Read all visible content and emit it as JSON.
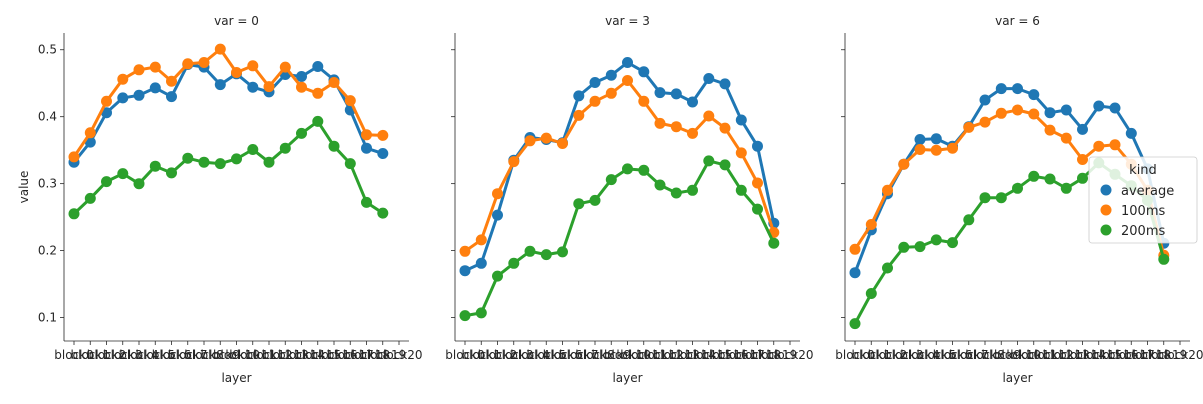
{
  "chart_data": {
    "type": "line",
    "ylabel": "value",
    "xlabel": "layer",
    "ylim": [
      0.065,
      0.525
    ],
    "yticks": [
      0.1,
      0.2,
      0.3,
      0.4,
      0.5
    ],
    "ytick_labels": [
      "0.1",
      "0.2",
      "0.3",
      "0.4",
      "0.5"
    ],
    "categories": [
      "block0",
      "block1",
      "block2",
      "block3",
      "block4",
      "block5",
      "block6",
      "block7",
      "block8",
      "block9",
      "block10",
      "block11",
      "block12",
      "block13",
      "block14",
      "block15",
      "block16",
      "block17",
      "block18",
      "block19",
      "block20"
    ],
    "legend": {
      "title": "kind",
      "placement": "center-right",
      "entries": [
        "average",
        "100ms",
        "200ms"
      ]
    },
    "colors": {
      "average": "#1f77b4",
      "100ms": "#ff7f0e",
      "200ms": "#2ca02c"
    },
    "panels": [
      {
        "title": "var = 0",
        "series": [
          {
            "name": "average",
            "values": [
              0.332,
              0.362,
              0.406,
              0.428,
              0.432,
              0.443,
              0.43,
              0.478,
              0.474,
              0.448,
              0.464,
              0.444,
              0.437,
              0.463,
              0.46,
              0.475,
              0.455,
              0.41,
              0.353,
              0.345,
              null
            ]
          },
          {
            "name": "100ms",
            "values": [
              0.34,
              0.376,
              0.423,
              0.456,
              0.47,
              0.474,
              0.453,
              0.479,
              0.481,
              0.501,
              0.466,
              0.476,
              0.445,
              0.474,
              0.444,
              0.435,
              0.451,
              0.424,
              0.373,
              0.372,
              null
            ]
          },
          {
            "name": "200ms",
            "values": [
              0.255,
              0.278,
              0.303,
              0.315,
              0.3,
              0.326,
              0.316,
              0.338,
              0.332,
              0.33,
              0.337,
              0.351,
              0.332,
              0.353,
              0.375,
              0.393,
              0.356,
              0.33,
              0.272,
              0.256,
              null
            ]
          }
        ]
      },
      {
        "title": "var = 3",
        "series": [
          {
            "name": "average",
            "values": [
              0.17,
              0.181,
              0.253,
              0.335,
              0.369,
              0.366,
              0.361,
              0.431,
              0.451,
              0.462,
              0.481,
              0.467,
              0.436,
              0.434,
              0.422,
              0.457,
              0.449,
              0.395,
              0.356,
              0.241,
              null
            ]
          },
          {
            "name": "100ms",
            "values": [
              0.199,
              0.216,
              0.285,
              0.333,
              0.364,
              0.368,
              0.36,
              0.402,
              0.423,
              0.435,
              0.454,
              0.423,
              0.39,
              0.385,
              0.375,
              0.401,
              0.383,
              0.346,
              0.301,
              0.227,
              null
            ]
          },
          {
            "name": "200ms",
            "values": [
              0.103,
              0.107,
              0.162,
              0.181,
              0.199,
              0.194,
              0.198,
              0.27,
              0.275,
              0.306,
              0.322,
              0.32,
              0.298,
              0.286,
              0.29,
              0.334,
              0.328,
              0.29,
              0.262,
              0.211,
              null
            ]
          }
        ]
      },
      {
        "title": "var = 6",
        "series": [
          {
            "name": "average",
            "values": [
              0.167,
              0.231,
              0.285,
              0.329,
              0.366,
              0.367,
              0.356,
              0.385,
              0.425,
              0.442,
              0.442,
              0.433,
              0.406,
              0.41,
              0.381,
              0.416,
              0.413,
              0.375,
              0.322,
              0.211,
              null
            ]
          },
          {
            "name": "100ms",
            "values": [
              0.202,
              0.239,
              0.29,
              0.329,
              0.351,
              0.35,
              0.353,
              0.384,
              0.392,
              0.405,
              0.41,
              0.404,
              0.38,
              0.368,
              0.336,
              0.356,
              0.358,
              0.329,
              0.29,
              0.193,
              null
            ]
          },
          {
            "name": "200ms",
            "values": [
              0.091,
              0.136,
              0.174,
              0.205,
              0.206,
              0.216,
              0.212,
              0.246,
              0.279,
              0.279,
              0.293,
              0.311,
              0.307,
              0.293,
              0.308,
              0.331,
              0.314,
              0.297,
              0.275,
              0.187,
              null
            ]
          }
        ]
      }
    ]
  }
}
